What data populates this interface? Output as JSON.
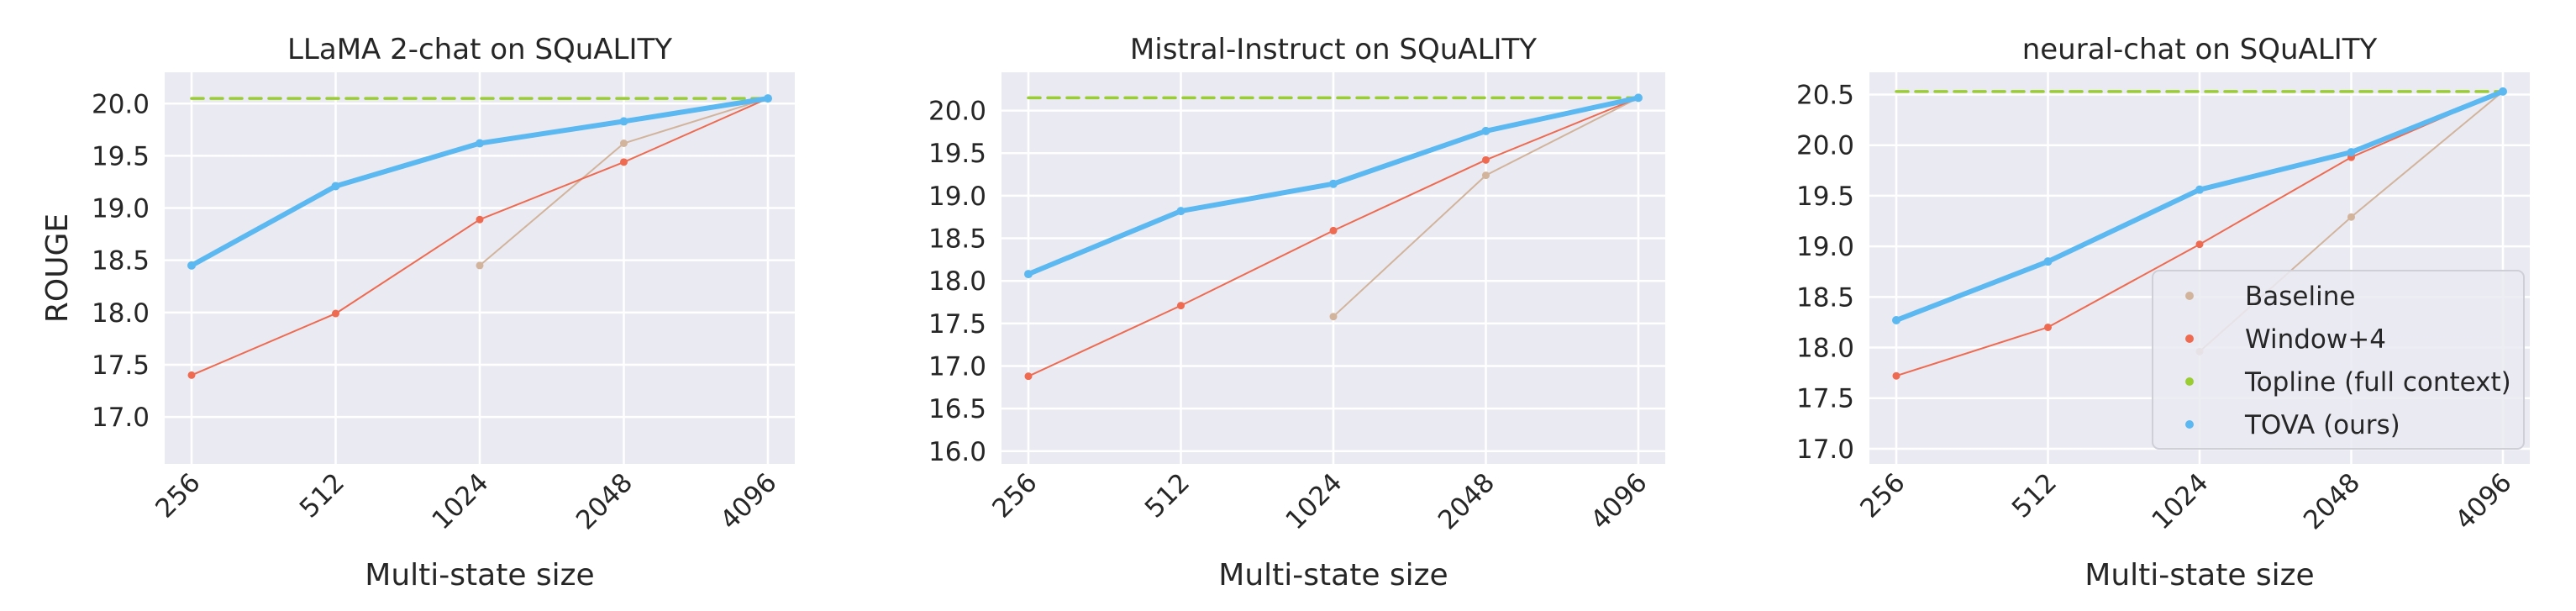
{
  "chart_data": [
    {
      "type": "line",
      "title": "LLaMA 2-chat on SQuALITY",
      "xlabel": "Multi-state size",
      "ylabel": "ROUGE",
      "x_scale": "log2",
      "x_ticks": [
        256,
        512,
        1024,
        2048,
        4096
      ],
      "ylim": [
        16.55,
        20.3
      ],
      "y_ticks": [
        "17.0",
        "17.5",
        "18.0",
        "18.5",
        "19.0",
        "19.5",
        "20.0"
      ],
      "grid": true,
      "series": [
        {
          "name": "Baseline",
          "x": [
            1024,
            2048,
            4096
          ],
          "values": [
            18.45,
            19.62,
            20.05
          ],
          "color": "#d2b49c",
          "style": "solid"
        },
        {
          "name": "Window+4",
          "x": [
            256,
            512,
            1024,
            2048,
            4096
          ],
          "values": [
            17.4,
            17.99,
            18.89,
            19.44,
            20.05
          ],
          "color": "#ee6a50",
          "style": "solid"
        },
        {
          "name": "Topline (full context)",
          "x": [
            256,
            4096
          ],
          "values": [
            20.05,
            20.05
          ],
          "color": "#9acd32",
          "style": "dashed"
        },
        {
          "name": "TOVA (ours)",
          "x": [
            256,
            512,
            1024,
            2048,
            4096
          ],
          "values": [
            18.45,
            19.21,
            19.62,
            19.83,
            20.05
          ],
          "color": "#5cb8f0",
          "style": "solid"
        }
      ]
    },
    {
      "type": "line",
      "title": "Mistral-Instruct on SQuALITY",
      "xlabel": "Multi-state size",
      "ylabel": "",
      "x_scale": "log2",
      "x_ticks": [
        256,
        512,
        1024,
        2048,
        4096
      ],
      "ylim": [
        15.85,
        20.45
      ],
      "y_ticks": [
        "16.0",
        "16.5",
        "17.0",
        "17.5",
        "18.0",
        "18.5",
        "19.0",
        "19.5",
        "20.0"
      ],
      "grid": true,
      "series": [
        {
          "name": "Baseline",
          "x": [
            1024,
            2048,
            4096
          ],
          "values": [
            17.58,
            19.24,
            20.15
          ],
          "color": "#d2b49c",
          "style": "solid"
        },
        {
          "name": "Window+4",
          "x": [
            256,
            512,
            1024,
            2048,
            4096
          ],
          "values": [
            16.88,
            17.71,
            18.59,
            19.42,
            20.15
          ],
          "color": "#ee6a50",
          "style": "solid"
        },
        {
          "name": "Topline (full context)",
          "x": [
            256,
            4096
          ],
          "values": [
            20.15,
            20.15
          ],
          "color": "#9acd32",
          "style": "dashed"
        },
        {
          "name": "TOVA (ours)",
          "x": [
            256,
            512,
            1024,
            2048,
            4096
          ],
          "values": [
            18.08,
            18.82,
            19.14,
            19.76,
            20.15
          ],
          "color": "#5cb8f0",
          "style": "solid"
        }
      ]
    },
    {
      "type": "line",
      "title": "neural-chat on SQuALITY",
      "xlabel": "Multi-state size",
      "ylabel": "",
      "x_scale": "log2",
      "x_ticks": [
        256,
        512,
        1024,
        2048,
        4096
      ],
      "ylim": [
        16.85,
        20.72
      ],
      "y_ticks": [
        "17.0",
        "17.5",
        "18.0",
        "18.5",
        "19.0",
        "19.5",
        "20.0",
        "20.5"
      ],
      "grid": true,
      "legend_position": "lower-right",
      "series": [
        {
          "name": "Baseline",
          "x": [
            1024,
            2048,
            4096
          ],
          "values": [
            17.96,
            19.29,
            20.53
          ],
          "color": "#d2b49c",
          "style": "solid"
        },
        {
          "name": "Window+4",
          "x": [
            256,
            512,
            1024,
            2048,
            4096
          ],
          "values": [
            17.72,
            18.2,
            19.02,
            19.88,
            20.53
          ],
          "color": "#ee6a50",
          "style": "solid"
        },
        {
          "name": "Topline (full context)",
          "x": [
            256,
            4096
          ],
          "values": [
            20.53,
            20.53
          ],
          "color": "#9acd32",
          "style": "dashed"
        },
        {
          "name": "TOVA (ours)",
          "x": [
            256,
            512,
            1024,
            2048,
            4096
          ],
          "values": [
            18.27,
            18.85,
            19.56,
            19.93,
            20.53
          ],
          "color": "#5cb8f0",
          "style": "solid"
        }
      ]
    }
  ],
  "legend": {
    "entries": [
      {
        "label": "Baseline",
        "color": "#d2b49c"
      },
      {
        "label": "Window+4",
        "color": "#ee6a50"
      },
      {
        "label": "Topline (full context)",
        "color": "#9acd32"
      },
      {
        "label": "TOVA (ours)",
        "color": "#5cb8f0"
      }
    ]
  }
}
